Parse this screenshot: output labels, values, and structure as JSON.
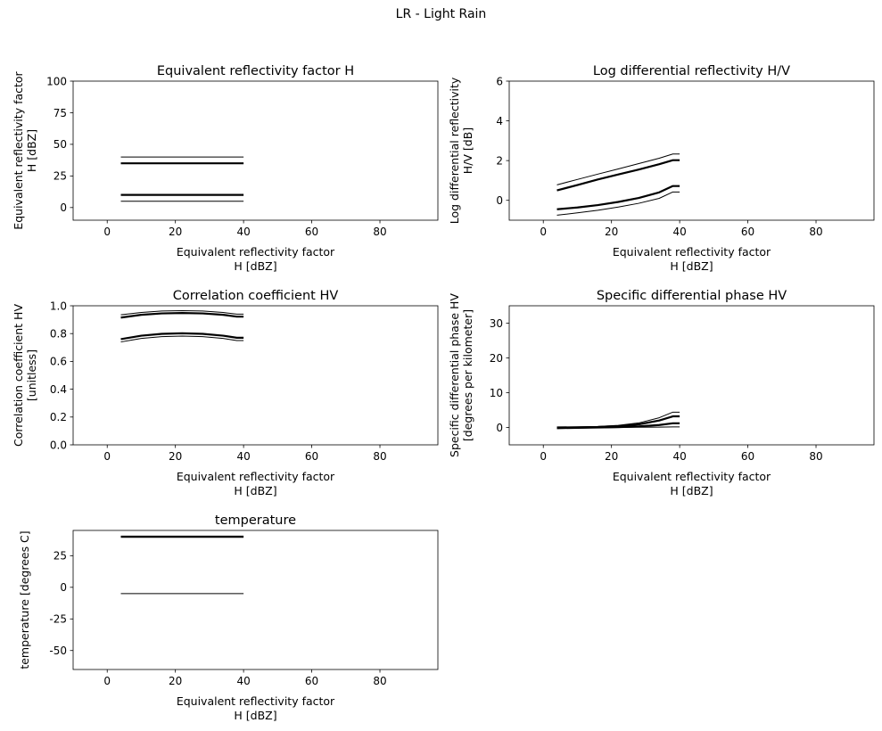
{
  "figure": {
    "suptitle": "LR - Light Rain"
  },
  "chart_data": [
    {
      "type": "line",
      "title": "Equivalent reflectivity factor H",
      "xlabel": [
        "Equivalent reflectivity factor",
        "H [dBZ]"
      ],
      "ylabel": [
        "Equivalent reflectivity factor",
        "H [dBZ]"
      ],
      "xlim": [
        -10,
        97
      ],
      "ylim": [
        -10,
        100
      ],
      "xticks": [
        0,
        20,
        40,
        60,
        80
      ],
      "yticks": [
        0,
        25,
        50,
        75,
        100
      ],
      "grid": false,
      "series": [
        {
          "x": [
            4,
            40
          ],
          "y": [
            5,
            5
          ],
          "width": 1
        },
        {
          "x": [
            4,
            40
          ],
          "y": [
            10,
            10
          ],
          "width": 2.2
        },
        {
          "x": [
            4,
            40
          ],
          "y": [
            35,
            35
          ],
          "width": 2.2
        },
        {
          "x": [
            4,
            40
          ],
          "y": [
            40,
            40
          ],
          "width": 1
        }
      ]
    },
    {
      "type": "line",
      "title": "Log differential reflectivity H/V",
      "xlabel": [
        "Equivalent reflectivity factor",
        "H [dBZ]"
      ],
      "ylabel": [
        "Log differential reflectivity",
        "H/V [dB]"
      ],
      "xlim": [
        -10,
        97
      ],
      "ylim": [
        -1,
        6
      ],
      "xticks": [
        0,
        20,
        40,
        60,
        80
      ],
      "yticks": [
        0,
        2,
        4,
        6
      ],
      "grid": false,
      "series": [
        {
          "x": [
            4,
            10,
            16,
            22,
            28,
            34,
            38,
            40
          ],
          "y": [
            -0.75,
            -0.63,
            -0.5,
            -0.34,
            -0.15,
            0.1,
            0.42,
            0.42
          ],
          "width": 1
        },
        {
          "x": [
            4,
            10,
            16,
            22,
            28,
            34,
            38,
            40
          ],
          "y": [
            -0.45,
            -0.36,
            -0.24,
            -0.08,
            0.12,
            0.4,
            0.72,
            0.72
          ],
          "width": 2.2
        },
        {
          "x": [
            4,
            10,
            16,
            22,
            28,
            34,
            38,
            40
          ],
          "y": [
            0.5,
            0.77,
            1.05,
            1.3,
            1.55,
            1.82,
            2.02,
            2.02
          ],
          "width": 2.2
        },
        {
          "x": [
            4,
            10,
            16,
            22,
            28,
            34,
            38,
            40
          ],
          "y": [
            0.78,
            1.05,
            1.32,
            1.58,
            1.85,
            2.12,
            2.33,
            2.33
          ],
          "width": 1
        }
      ]
    },
    {
      "type": "line",
      "title": "Correlation coefficient HV",
      "xlabel": [
        "Equivalent reflectivity factor",
        "H [dBZ]"
      ],
      "ylabel": [
        "Correlation coefficient HV",
        "[unitless]"
      ],
      "xlim": [
        -10,
        97
      ],
      "ylim": [
        0,
        1
      ],
      "xticks": [
        0,
        20,
        40,
        60,
        80
      ],
      "yticks": [
        0.0,
        0.2,
        0.4,
        0.6,
        0.8,
        1.0
      ],
      "ytick_labels": [
        "0.0",
        "0.2",
        "0.4",
        "0.6",
        "0.8",
        "1.0"
      ],
      "grid": false,
      "series": [
        {
          "x": [
            4,
            10,
            16,
            22,
            28,
            34,
            38,
            40
          ],
          "y": [
            0.74,
            0.765,
            0.778,
            0.782,
            0.778,
            0.765,
            0.75,
            0.75
          ],
          "width": 1
        },
        {
          "x": [
            4,
            10,
            16,
            22,
            28,
            34,
            38,
            40
          ],
          "y": [
            0.76,
            0.785,
            0.798,
            0.802,
            0.798,
            0.785,
            0.77,
            0.77
          ],
          "width": 2.2
        },
        {
          "x": [
            4,
            10,
            16,
            22,
            28,
            34,
            38,
            40
          ],
          "y": [
            0.915,
            0.935,
            0.945,
            0.948,
            0.945,
            0.935,
            0.922,
            0.922
          ],
          "width": 2.2
        },
        {
          "x": [
            4,
            10,
            16,
            22,
            28,
            34,
            38,
            40
          ],
          "y": [
            0.935,
            0.952,
            0.962,
            0.965,
            0.962,
            0.952,
            0.94,
            0.94
          ],
          "width": 1
        }
      ]
    },
    {
      "type": "line",
      "title": "Specific differential phase HV",
      "xlabel": [
        "Equivalent reflectivity factor",
        "H [dBZ]"
      ],
      "ylabel": [
        "Specific differential phase HV",
        "[degrees per kilometer]"
      ],
      "xlim": [
        -10,
        97
      ],
      "ylim": [
        -5,
        35
      ],
      "xticks": [
        0,
        20,
        40,
        60,
        80
      ],
      "yticks": [
        0,
        10,
        20,
        30
      ],
      "grid": false,
      "series": [
        {
          "x": [
            4,
            10,
            16,
            22,
            28,
            34,
            38,
            40
          ],
          "y": [
            -0.3,
            -0.2,
            -0.1,
            0.0,
            0.05,
            0.1,
            0.15,
            0.15
          ],
          "width": 1
        },
        {
          "x": [
            4,
            10,
            16,
            22,
            28,
            34,
            38,
            40
          ],
          "y": [
            -0.2,
            -0.1,
            0.0,
            0.1,
            0.3,
            0.7,
            1.2,
            1.2
          ],
          "width": 2.2
        },
        {
          "x": [
            4,
            10,
            16,
            22,
            28,
            34,
            38,
            40
          ],
          "y": [
            0.0,
            0.05,
            0.15,
            0.4,
            0.9,
            2.0,
            3.2,
            3.2
          ],
          "width": 2.2
        },
        {
          "x": [
            4,
            10,
            16,
            22,
            28,
            34,
            38,
            40
          ],
          "y": [
            0.1,
            0.15,
            0.3,
            0.6,
            1.3,
            2.8,
            4.4,
            4.4
          ],
          "width": 1
        }
      ]
    },
    {
      "type": "line",
      "title": "temperature",
      "xlabel": [
        "Equivalent reflectivity factor",
        "H [dBZ]"
      ],
      "ylabel": [
        "temperature [degrees C]"
      ],
      "xlim": [
        -10,
        97
      ],
      "ylim": [
        -65,
        45
      ],
      "xticks": [
        0,
        20,
        40,
        60,
        80
      ],
      "yticks": [
        -50,
        -25,
        0,
        25
      ],
      "grid": false,
      "series": [
        {
          "x": [
            4,
            40
          ],
          "y": [
            -5,
            -5
          ],
          "width": 1
        },
        {
          "x": [
            4,
            40
          ],
          "y": [
            40,
            40
          ],
          "width": 2.4
        }
      ]
    }
  ]
}
